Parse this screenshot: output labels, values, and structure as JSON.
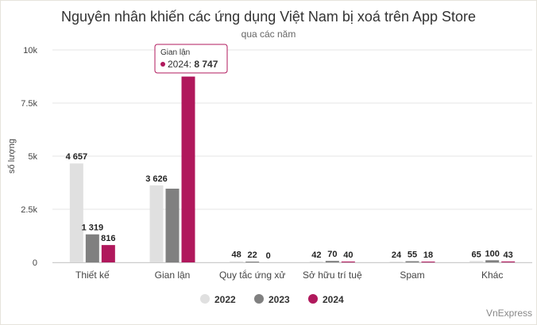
{
  "chart_data": {
    "type": "bar",
    "title": "Nguyên nhân khiến các ứng dụng Việt Nam bị xoá trên App Store",
    "subtitle": "qua các năm",
    "ylabel": "số lượng",
    "ylim": [
      0,
      10000
    ],
    "yticks": [
      0,
      2500,
      5000,
      7500,
      10000
    ],
    "ytick_labels": [
      "0",
      "2.5k",
      "5k",
      "7.5k",
      "10k"
    ],
    "grid": true,
    "legend_position": "bottom",
    "categories": [
      "Thiết kế",
      "Gian lận",
      "Quy tắc ứng xử",
      "Sở hữu trí tuệ",
      "Spam",
      "Khác"
    ],
    "series": [
      {
        "name": "2022",
        "color": "#e0e0e0",
        "values": [
          4657,
          3626,
          48,
          42,
          24,
          65
        ],
        "labels": [
          "4 657",
          "3 626",
          "48",
          "42",
          "24",
          "65"
        ]
      },
      {
        "name": "2023",
        "color": "#808080",
        "values": [
          1319,
          3470,
          22,
          70,
          55,
          100
        ],
        "labels": [
          "1 319",
          "",
          "22",
          "70",
          "55",
          "100"
        ]
      },
      {
        "name": "2024",
        "color": "#b0185c",
        "values": [
          816,
          8747,
          0,
          40,
          18,
          43
        ],
        "labels": [
          "816",
          "",
          "0",
          "40",
          "18",
          "43"
        ]
      }
    ],
    "tooltip": {
      "header": "Gian lận",
      "series": "2024",
      "text": "2024: ",
      "value": "8 747",
      "color": "#b0185c"
    }
  },
  "credit": "VnExpress"
}
